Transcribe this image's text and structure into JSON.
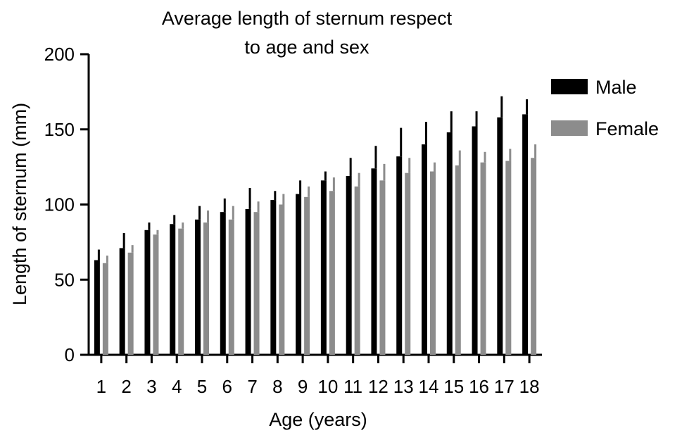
{
  "chart_data": {
    "type": "bar",
    "title_lines": [
      "Average length of sternum respect",
      "to age and sex"
    ],
    "xlabel": "Age (years)",
    "ylabel": "Length of sternum (mm)",
    "ylim": [
      0,
      200
    ],
    "yticks": [
      0,
      50,
      100,
      150,
      200
    ],
    "categories": [
      "1",
      "2",
      "3",
      "4",
      "5",
      "6",
      "7",
      "8",
      "9",
      "10",
      "11",
      "12",
      "13",
      "14",
      "15",
      "16",
      "17",
      "18"
    ],
    "legend_position": "right",
    "grid": false,
    "series": [
      {
        "name": "Male",
        "color": "#000000",
        "values": [
          63,
          71,
          83,
          87,
          90,
          95,
          97,
          103,
          107,
          116,
          119,
          124,
          132,
          140,
          148,
          152,
          158,
          160
        ],
        "error": [
          7,
          10,
          5,
          6,
          9,
          9,
          14,
          6,
          9,
          6,
          12,
          15,
          19,
          15,
          14,
          10,
          14,
          10
        ]
      },
      {
        "name": "Female",
        "color": "#8c8c8c",
        "values": [
          61,
          68,
          80,
          84,
          88,
          90,
          95,
          100,
          105,
          109,
          112,
          116,
          121,
          122,
          126,
          128,
          129,
          131
        ],
        "error": [
          5,
          5,
          3,
          4,
          8,
          9,
          7,
          7,
          7,
          9,
          9,
          11,
          10,
          6,
          10,
          7,
          8,
          9
        ]
      }
    ]
  }
}
